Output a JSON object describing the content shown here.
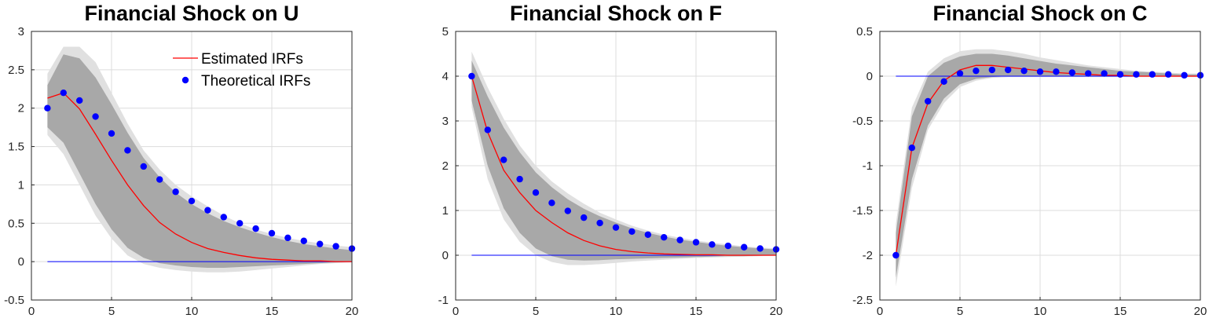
{
  "chart_data": [
    {
      "type": "line",
      "title": "Financial Shock on U",
      "xlabel": "",
      "ylabel": "",
      "xlim": [
        0,
        20
      ],
      "ylim": [
        -0.5,
        3
      ],
      "xticks": [
        "0",
        "5",
        "10",
        "15",
        "20"
      ],
      "yticks": [
        "-0.5",
        "0",
        "0.5",
        "1",
        "1.5",
        "2",
        "2.5",
        "3"
      ],
      "grid": true,
      "legend": {
        "position": "top-right",
        "entries": [
          "Estimated IRFs",
          "Theoretical IRFs"
        ]
      },
      "x": [
        1,
        2,
        3,
        4,
        5,
        6,
        7,
        8,
        9,
        10,
        11,
        12,
        13,
        14,
        15,
        16,
        17,
        18,
        19,
        20
      ],
      "zero_line": {
        "x": [
          1,
          20
        ],
        "y": 0,
        "color": "#0000ff"
      },
      "bands": [
        {
          "name": "",
          "color": "#e0e0e0",
          "lower": [
            1.65,
            1.4,
            1.0,
            0.6,
            0.3,
            0.08,
            -0.03,
            -0.08,
            -0.11,
            -0.13,
            -0.14,
            -0.14,
            -0.13,
            -0.11,
            -0.09,
            -0.07,
            -0.05,
            -0.03,
            -0.02,
            -0.01
          ],
          "upper": [
            2.45,
            2.8,
            2.8,
            2.6,
            2.2,
            1.8,
            1.45,
            1.2,
            1.0,
            0.85,
            0.72,
            0.6,
            0.5,
            0.42,
            0.36,
            0.31,
            0.27,
            0.24,
            0.21,
            0.19
          ]
        },
        {
          "name": "",
          "color": "#a8a8a8",
          "lower": [
            1.75,
            1.55,
            1.15,
            0.75,
            0.42,
            0.18,
            0.05,
            -0.02,
            -0.05,
            -0.07,
            -0.08,
            -0.08,
            -0.07,
            -0.06,
            -0.05,
            -0.04,
            -0.03,
            -0.02,
            -0.01,
            0.0
          ],
          "upper": [
            2.3,
            2.7,
            2.65,
            2.4,
            2.05,
            1.68,
            1.35,
            1.1,
            0.9,
            0.75,
            0.63,
            0.53,
            0.45,
            0.38,
            0.32,
            0.27,
            0.23,
            0.2,
            0.17,
            0.15
          ]
        }
      ],
      "series": [
        {
          "name": "Estimated IRFs",
          "style": "line",
          "color": "#ff0000",
          "values": [
            2.13,
            2.2,
            1.99,
            1.66,
            1.32,
            1.0,
            0.73,
            0.51,
            0.36,
            0.25,
            0.17,
            0.12,
            0.08,
            0.05,
            0.03,
            0.02,
            0.01,
            0.01,
            0.0,
            0.0
          ]
        },
        {
          "name": "Theoretical IRFs",
          "style": "dots",
          "color": "#0000ff",
          "values": [
            2.0,
            2.2,
            2.1,
            1.89,
            1.67,
            1.45,
            1.24,
            1.07,
            0.91,
            0.79,
            0.67,
            0.58,
            0.5,
            0.43,
            0.37,
            0.31,
            0.27,
            0.23,
            0.2,
            0.17
          ]
        }
      ]
    },
    {
      "type": "line",
      "title": "Financial Shock on F",
      "xlabel": "",
      "ylabel": "",
      "xlim": [
        0,
        20
      ],
      "ylim": [
        -1,
        5
      ],
      "xticks": [
        "0",
        "5",
        "10",
        "15",
        "20"
      ],
      "yticks": [
        "-1",
        "0",
        "1",
        "2",
        "3",
        "4",
        "5"
      ],
      "grid": true,
      "x": [
        1,
        2,
        3,
        4,
        5,
        6,
        7,
        8,
        9,
        10,
        11,
        12,
        13,
        14,
        15,
        16,
        17,
        18,
        19,
        20
      ],
      "zero_line": {
        "x": [
          1,
          20
        ],
        "y": 0,
        "color": "#0000ff"
      },
      "bands": [
        {
          "name": "",
          "color": "#e0e0e0",
          "lower": [
            3.3,
            1.7,
            0.8,
            0.3,
            0.0,
            -0.15,
            -0.22,
            -0.22,
            -0.2,
            -0.17,
            -0.14,
            -0.12,
            -0.1,
            -0.08,
            -0.06,
            -0.05,
            -0.04,
            -0.03,
            -0.02,
            -0.01
          ],
          "upper": [
            4.55,
            3.75,
            3.05,
            2.45,
            2.0,
            1.65,
            1.38,
            1.15,
            0.95,
            0.8,
            0.66,
            0.55,
            0.46,
            0.39,
            0.33,
            0.28,
            0.24,
            0.2,
            0.17,
            0.15
          ]
        },
        {
          "name": "",
          "color": "#a8a8a8",
          "lower": [
            3.45,
            2.0,
            1.05,
            0.5,
            0.15,
            -0.02,
            -0.1,
            -0.12,
            -0.11,
            -0.09,
            -0.08,
            -0.07,
            -0.06,
            -0.05,
            -0.04,
            -0.03,
            -0.02,
            -0.02,
            -0.01,
            0.0
          ],
          "upper": [
            4.35,
            3.55,
            2.85,
            2.3,
            1.85,
            1.52,
            1.25,
            1.04,
            0.87,
            0.73,
            0.6,
            0.5,
            0.42,
            0.35,
            0.3,
            0.25,
            0.21,
            0.18,
            0.15,
            0.13
          ]
        }
      ],
      "series": [
        {
          "name": "Estimated IRFs",
          "style": "line",
          "color": "#ff0000",
          "values": [
            4.0,
            2.75,
            1.9,
            1.4,
            1.0,
            0.73,
            0.5,
            0.33,
            0.21,
            0.13,
            0.08,
            0.05,
            0.03,
            0.02,
            0.01,
            0.01,
            0.0,
            0.0,
            0.0,
            0.0
          ]
        },
        {
          "name": "Theoretical IRFs",
          "style": "dots",
          "color": "#0000ff",
          "values": [
            4.0,
            2.8,
            2.13,
            1.7,
            1.4,
            1.17,
            0.99,
            0.84,
            0.72,
            0.62,
            0.53,
            0.46,
            0.4,
            0.34,
            0.29,
            0.24,
            0.21,
            0.18,
            0.15,
            0.13
          ]
        }
      ]
    },
    {
      "type": "line",
      "title": "Financial Shock on C",
      "xlabel": "",
      "ylabel": "",
      "xlim": [
        0,
        20
      ],
      "ylim": [
        -2.5,
        0.5
      ],
      "xticks": [
        "0",
        "5",
        "10",
        "15",
        "20"
      ],
      "yticks": [
        "-2.5",
        "-2",
        "-1.5",
        "-1",
        "-0.5",
        "0",
        "0.5"
      ],
      "grid": true,
      "x": [
        1,
        2,
        3,
        4,
        5,
        6,
        7,
        8,
        9,
        10,
        11,
        12,
        13,
        14,
        15,
        16,
        17,
        18,
        19,
        20
      ],
      "zero_line": {
        "x": [
          1,
          20
        ],
        "y": 0,
        "color": "#0000ff"
      },
      "bands": [
        {
          "name": "",
          "color": "#e0e0e0",
          "lower": [
            -2.35,
            -1.25,
            -0.6,
            -0.3,
            -0.12,
            -0.05,
            -0.02,
            -0.01,
            -0.01,
            -0.01,
            -0.01,
            -0.01,
            -0.01,
            -0.01,
            -0.01,
            -0.01,
            -0.01,
            -0.01,
            -0.01,
            -0.01
          ],
          "upper": [
            -1.65,
            -0.35,
            0.05,
            0.2,
            0.28,
            0.3,
            0.3,
            0.28,
            0.25,
            0.21,
            0.18,
            0.15,
            0.12,
            0.1,
            0.08,
            0.06,
            0.05,
            0.04,
            0.03,
            0.03
          ]
        },
        {
          "name": "",
          "color": "#a8a8a8",
          "lower": [
            -2.25,
            -1.15,
            -0.55,
            -0.25,
            -0.09,
            -0.03,
            -0.01,
            0.0,
            0.0,
            0.0,
            0.0,
            0.0,
            0.0,
            0.0,
            0.0,
            0.0,
            0.0,
            0.0,
            0.0,
            0.0
          ],
          "upper": [
            -1.75,
            -0.45,
            0.0,
            0.15,
            0.22,
            0.25,
            0.25,
            0.23,
            0.2,
            0.17,
            0.14,
            0.12,
            0.1,
            0.08,
            0.06,
            0.05,
            0.04,
            0.03,
            0.02,
            0.02
          ]
        }
      ],
      "series": [
        {
          "name": "Estimated IRFs",
          "style": "line",
          "color": "#ff0000",
          "values": [
            -2.0,
            -0.8,
            -0.3,
            -0.05,
            0.07,
            0.12,
            0.12,
            0.1,
            0.08,
            0.06,
            0.04,
            0.03,
            0.02,
            0.01,
            0.01,
            0.0,
            0.0,
            0.0,
            0.0,
            0.0
          ]
        },
        {
          "name": "Theoretical IRFs",
          "style": "dots",
          "color": "#0000ff",
          "values": [
            -2.0,
            -0.8,
            -0.28,
            -0.06,
            0.03,
            0.06,
            0.07,
            0.07,
            0.06,
            0.05,
            0.05,
            0.04,
            0.03,
            0.03,
            0.02,
            0.02,
            0.02,
            0.02,
            0.01,
            0.01
          ]
        }
      ]
    }
  ]
}
